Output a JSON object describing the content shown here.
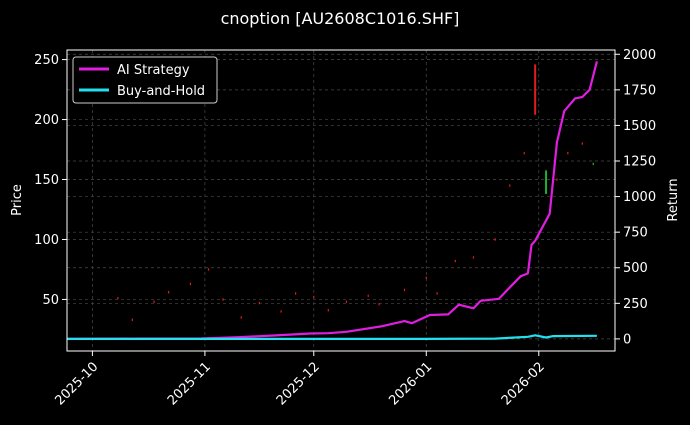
{
  "chart_data": {
    "type": "line",
    "title": "cnoption [AU2608C1016.SHF]",
    "ylabel_left": "Price",
    "ylabel_right": "Return",
    "x_ticks": [
      "2025-10",
      "2025-11",
      "2025-12",
      "2026-01",
      "2026-02"
    ],
    "x_range": [
      "2025-09-24",
      "2026-02-22"
    ],
    "y_left_range": [
      7,
      258
    ],
    "y_left_ticks": [
      50,
      100,
      150,
      200,
      250
    ],
    "y_right_range": [
      -85,
      2030
    ],
    "y_right_ticks": [
      0,
      250,
      500,
      750,
      1000,
      1250,
      1500,
      1750,
      2000
    ],
    "grid": true,
    "legend_position": "top-left",
    "colors": {
      "ai_strategy": "#e01ee0",
      "buy_and_hold": "#22e0ee",
      "candle_up": "#1fae3a",
      "candle_down": "#e21c1c",
      "grid": "#4a4a4a"
    },
    "series": [
      {
        "name": "AI Strategy",
        "axis": "right",
        "points": [
          [
            "2025-09-24",
            0
          ],
          [
            "2025-10-15",
            2
          ],
          [
            "2025-10-31",
            3
          ],
          [
            "2025-11-10",
            12
          ],
          [
            "2025-11-20",
            24
          ],
          [
            "2025-11-30",
            38
          ],
          [
            "2025-12-05",
            40
          ],
          [
            "2025-12-10",
            50
          ],
          [
            "2025-12-20",
            90
          ],
          [
            "2025-12-26",
            125
          ],
          [
            "2025-12-28",
            110
          ],
          [
            "2026-01-02",
            168
          ],
          [
            "2026-01-07",
            172
          ],
          [
            "2026-01-10",
            240
          ],
          [
            "2026-01-14",
            215
          ],
          [
            "2026-01-16",
            268
          ],
          [
            "2026-01-21",
            282
          ],
          [
            "2026-01-23",
            335
          ],
          [
            "2026-01-27",
            440
          ],
          [
            "2026-01-29",
            460
          ],
          [
            "2026-01-30",
            660
          ],
          [
            "2026-01-31",
            690
          ],
          [
            "2026-02-04",
            880
          ],
          [
            "2026-02-06",
            1380
          ],
          [
            "2026-02-08",
            1600
          ],
          [
            "2026-02-11",
            1690
          ],
          [
            "2026-02-13",
            1700
          ],
          [
            "2026-02-15",
            1750
          ],
          [
            "2026-02-17",
            1950
          ]
        ]
      },
      {
        "name": "Buy-and-Hold",
        "axis": "right",
        "points": [
          [
            "2025-09-24",
            0
          ],
          [
            "2025-10-31",
            0
          ],
          [
            "2025-12-31",
            0
          ],
          [
            "2026-01-20",
            2
          ],
          [
            "2026-01-29",
            15
          ],
          [
            "2026-01-31",
            25
          ],
          [
            "2026-02-03",
            10
          ],
          [
            "2026-02-05",
            20
          ],
          [
            "2026-02-17",
            22
          ]
        ]
      }
    ],
    "price_ticks": [
      [
        "2025-10-08",
        51,
        "down"
      ],
      [
        "2025-10-12",
        33,
        "down"
      ],
      [
        "2025-10-18",
        48,
        "down"
      ],
      [
        "2025-10-22",
        56,
        "down"
      ],
      [
        "2025-10-28",
        63,
        "down"
      ],
      [
        "2025-11-02",
        75,
        "down"
      ],
      [
        "2025-11-06",
        50,
        "down"
      ],
      [
        "2025-11-11",
        35,
        "down"
      ],
      [
        "2025-11-16",
        47,
        "down"
      ],
      [
        "2025-11-22",
        40,
        "down"
      ],
      [
        "2025-11-26",
        55,
        "down"
      ],
      [
        "2025-12-01",
        52,
        "down"
      ],
      [
        "2025-12-05",
        41,
        "down"
      ],
      [
        "2025-12-10",
        48,
        "down"
      ],
      [
        "2025-12-16",
        53,
        "down"
      ],
      [
        "2025-12-19",
        46,
        "down"
      ],
      [
        "2025-12-26",
        58,
        "down"
      ],
      [
        "2026-01-01",
        68,
        "down"
      ],
      [
        "2026-01-04",
        55,
        "down"
      ],
      [
        "2026-01-09",
        82,
        "down"
      ],
      [
        "2026-01-14",
        85,
        "down"
      ],
      [
        "2026-01-20",
        100,
        "down"
      ],
      [
        "2026-01-24",
        145,
        "down"
      ],
      [
        "2026-01-28",
        172,
        "down"
      ],
      [
        "2026-01-31",
        220,
        "down"
      ],
      [
        "2026-02-03",
        157,
        "up"
      ],
      [
        "2026-02-06",
        150,
        "down"
      ],
      [
        "2026-02-09",
        172,
        "down"
      ],
      [
        "2026-02-13",
        180,
        "down"
      ],
      [
        "2026-02-16",
        163,
        "up"
      ]
    ],
    "price_candles": [
      [
        "2026-01-31",
        246,
        204,
        "down"
      ],
      [
        "2026-02-03",
        157,
        138,
        "up"
      ]
    ]
  }
}
